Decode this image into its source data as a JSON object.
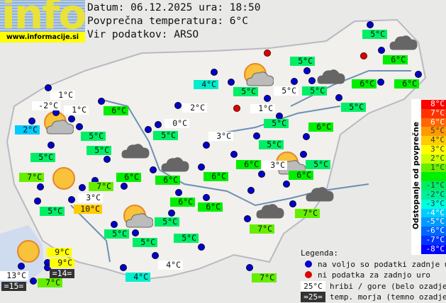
{
  "header": {
    "logo_word": "info",
    "logo_url": "www.informacije.si",
    "date_line": "Datum: 06.12.2025 ura: 18:50",
    "avg_line": "Povprečna temperatura: 6°C",
    "source_line": "Vir podatkov: ARSO"
  },
  "colors": {
    "dev_plus4": "#ffcc00",
    "dev_plus3": "#ffff00",
    "dev_plus1": "#66ee00",
    "dev_0": "#00ee00",
    "dev_minus1": "#00ee66",
    "dev_minus2": "#00eecc",
    "dev_minus4": "#00ccff",
    "station_ok": "#0000cc",
    "station_missing": "#dd0000"
  },
  "stations": [
    {
      "t": "1°C",
      "k": "hill"
    },
    {
      "t": "-2°C",
      "k": "hill"
    },
    {
      "t": "1°C",
      "k": "hill"
    },
    {
      "t": "2°C",
      "k": "dev_minus4"
    },
    {
      "t": "6°C",
      "k": "dev_0"
    },
    {
      "t": "5°C",
      "k": "dev_minus1"
    },
    {
      "t": "5°C",
      "k": "dev_minus1"
    },
    {
      "t": "5°C",
      "k": "dev_minus1"
    },
    {
      "t": "7°C",
      "k": "dev_plus1"
    },
    {
      "t": "6°C",
      "k": "dev_0"
    },
    {
      "t": "7°C",
      "k": "dev_plus1"
    },
    {
      "t": "3°C",
      "k": "hill"
    },
    {
      "t": "5°C",
      "k": "dev_minus1"
    },
    {
      "t": "10°C",
      "k": "dev_plus4"
    },
    {
      "t": "5°C",
      "k": "dev_minus1"
    },
    {
      "t": "5°C",
      "k": "dev_minus1"
    },
    {
      "t": "9°C",
      "k": "dev_plus3"
    },
    {
      "t": "9°C",
      "k": "dev_plus3"
    },
    {
      "t": "=14=",
      "k": "sea"
    },
    {
      "t": "13°C",
      "k": "hill"
    },
    {
      "t": "=15=",
      "k": "sea"
    },
    {
      "t": "7°C",
      "k": "dev_plus1"
    },
    {
      "t": "4°C",
      "k": "dev_minus2"
    },
    {
      "t": "4°C",
      "k": "hill"
    },
    {
      "t": "4°C",
      "k": "dev_minus2"
    },
    {
      "t": "5°C",
      "k": "dev_minus1"
    },
    {
      "t": "5°C",
      "k": "hill"
    },
    {
      "t": "2°C",
      "k": "hill"
    },
    {
      "t": "1°C",
      "k": "hill"
    },
    {
      "t": "0°C",
      "k": "hill"
    },
    {
      "t": "5°C",
      "k": "dev_minus1"
    },
    {
      "t": "3°C",
      "k": "hill"
    },
    {
      "t": "5°C",
      "k": "dev_minus1"
    },
    {
      "t": "5°C",
      "k": "dev_minus1"
    },
    {
      "t": "5°C",
      "k": "dev_minus1"
    },
    {
      "t": "6°C",
      "k": "dev_0"
    },
    {
      "t": "5°C",
      "k": "dev_minus1"
    },
    {
      "t": "5°C",
      "k": "dev_minus1"
    },
    {
      "t": "6°C",
      "k": "dev_0"
    },
    {
      "t": "6°C",
      "k": "dev_0"
    },
    {
      "t": "5°C",
      "k": "dev_minus1"
    },
    {
      "t": "6°C",
      "k": "dev_0"
    },
    {
      "t": "6°C",
      "k": "dev_0"
    },
    {
      "t": "3°C",
      "k": "hill"
    },
    {
      "t": "6°C",
      "k": "dev_0"
    },
    {
      "t": "5°C",
      "k": "dev_minus1"
    },
    {
      "t": "6°C",
      "k": "dev_0"
    },
    {
      "t": "6°C",
      "k": "dev_0"
    },
    {
      "t": "6°C",
      "k": "dev_0"
    },
    {
      "t": "6°C",
      "k": "dev_0"
    },
    {
      "t": "5°C",
      "k": "dev_minus1"
    },
    {
      "t": "5°C",
      "k": "dev_minus1"
    },
    {
      "t": "7°C",
      "k": "dev_plus1"
    },
    {
      "t": "7°C",
      "k": "dev_plus1"
    },
    {
      "t": "7°C",
      "k": "dev_plus1"
    }
  ],
  "scale": {
    "title": "Odstopanje od povprečne temperature:",
    "steps": [
      {
        "label": "8°C",
        "color": "#ff0000"
      },
      {
        "label": "7°C",
        "color": "#ff3300"
      },
      {
        "label": "6°C",
        "color": "#ff6600"
      },
      {
        "label": "5°C",
        "color": "#ff9900"
      },
      {
        "label": "4°C",
        "color": "#ffcc00"
      },
      {
        "label": "3°C",
        "color": "#ffff00"
      },
      {
        "label": "2°C",
        "color": "#ccff00"
      },
      {
        "label": "1°C",
        "color": "#66ee00"
      },
      {
        "label": "",
        "color": "#00ee00"
      },
      {
        "label": "-1°C",
        "color": "#00ee66"
      },
      {
        "label": "-2°C",
        "color": "#00ee99"
      },
      {
        "label": "-3°C",
        "color": "#00ffdd"
      },
      {
        "label": "-4°C",
        "color": "#00ccff"
      },
      {
        "label": "-5°C",
        "color": "#0099ff"
      },
      {
        "label": "-6°C",
        "color": "#0066ff"
      },
      {
        "label": "-7°C",
        "color": "#0033ff"
      },
      {
        "label": "-8°C",
        "color": "#0000ff"
      }
    ]
  },
  "legend": {
    "title": "Legenda:",
    "available": "na voljo so podatki zadnje ure",
    "missing": "ni podatka za zadnjo uro",
    "hill_sample": "25°C",
    "hill_text": "hribi / gore (belo ozadje)",
    "sea_sample": "=25=",
    "sea_text": "temp. morja (temno ozadje)"
  }
}
